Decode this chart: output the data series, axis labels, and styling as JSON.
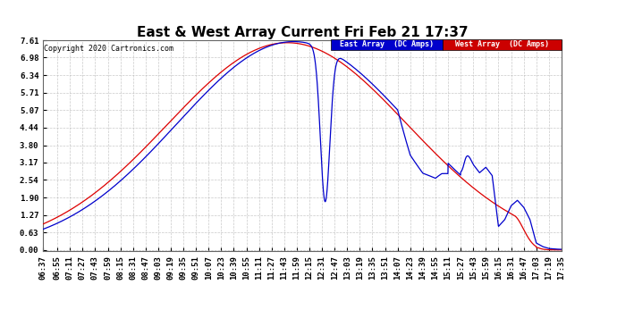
{
  "title": "East & West Array Current Fri Feb 21 17:37",
  "copyright": "Copyright 2020 Cartronics.com",
  "legend_east": "East Array  (DC Amps)",
  "legend_west": "West Array  (DC Amps)",
  "east_color": "#0000cc",
  "west_color": "#dd0000",
  "legend_east_bg": "#0000cc",
  "legend_west_bg": "#cc0000",
  "background_color": "#ffffff",
  "plot_bg_color": "#ffffff",
  "grid_color": "#bbbbbb",
  "yticks": [
    0.0,
    0.63,
    1.27,
    1.9,
    2.54,
    3.17,
    3.8,
    4.44,
    5.07,
    5.71,
    6.34,
    6.98,
    7.61
  ],
  "ylim": [
    -0.05,
    7.61
  ],
  "title_fontsize": 11,
  "tick_fontsize": 6.5
}
